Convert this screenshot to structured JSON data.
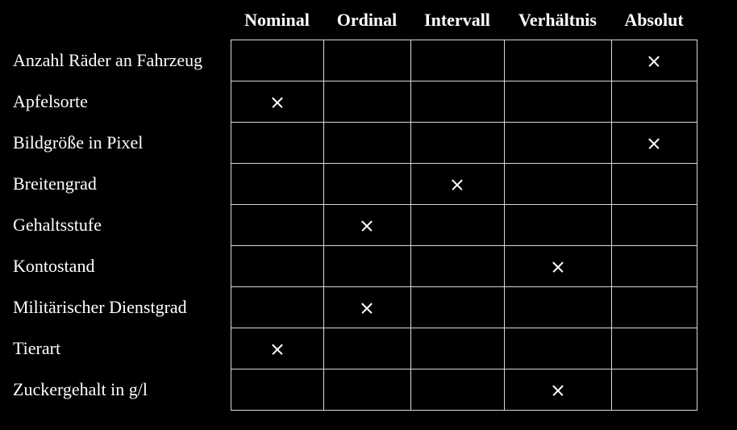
{
  "columns": [
    "Nominal",
    "Ordinal",
    "Intervall",
    "Verhältnis",
    "Absolut"
  ],
  "rows": [
    {
      "label": "Anzahl Räder an Fahrzeug",
      "scale": "Absolut"
    },
    {
      "label": "Apfelsorte",
      "scale": "Nominal"
    },
    {
      "label": "Bildgröße in Pixel",
      "scale": "Absolut"
    },
    {
      "label": "Breitengrad",
      "scale": "Intervall"
    },
    {
      "label": "Gehaltsstufe",
      "scale": "Ordinal"
    },
    {
      "label": "Kontostand",
      "scale": "Verhältnis"
    },
    {
      "label": "Militärischer Dienstgrad",
      "scale": "Ordinal"
    },
    {
      "label": "Tierart",
      "scale": "Nominal"
    },
    {
      "label": "Zuckergehalt in g/l",
      "scale": "Verhältnis"
    }
  ],
  "mark_icon": "cross-mark-icon",
  "colors": {
    "background": "#000000",
    "text": "#ffffff",
    "grid": "#d9d9d9"
  }
}
